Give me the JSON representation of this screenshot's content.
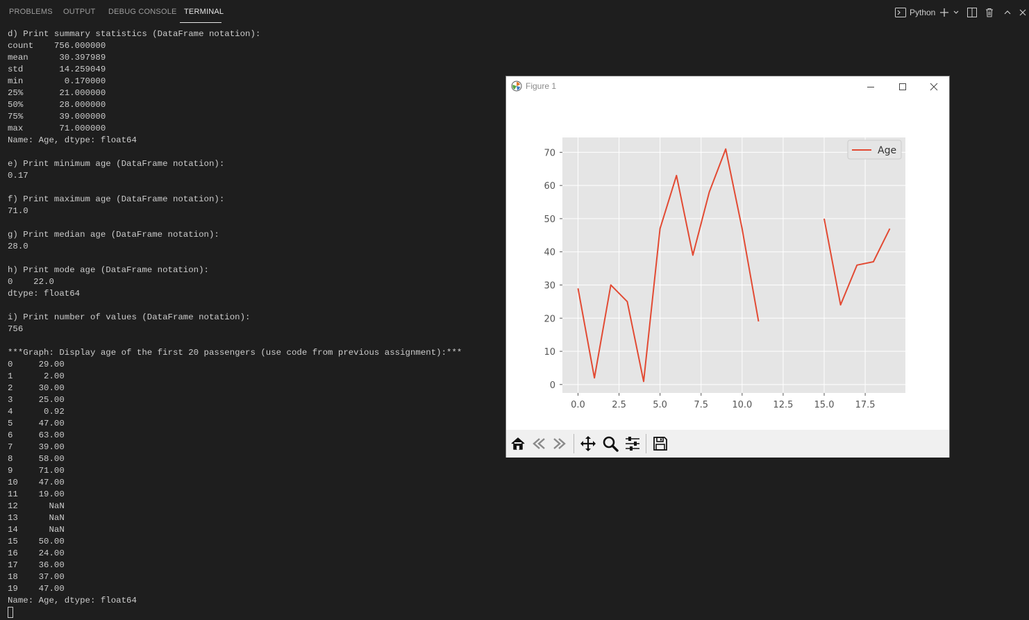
{
  "tabs": [
    {
      "label": "PROBLEMS",
      "active": false
    },
    {
      "label": "OUTPUT",
      "active": false
    },
    {
      "label": "DEBUG CONSOLE",
      "active": false
    },
    {
      "label": "TERMINAL",
      "active": true
    }
  ],
  "terminal_tools": {
    "shell_label": "Python",
    "icons": [
      "terminal-icon",
      "plus-icon",
      "chevron-down-icon",
      "split-icon",
      "trash-icon",
      "chevron-up-icon",
      "close-icon"
    ]
  },
  "terminal": {
    "lines": [
      "d) Print summary statistics (DataFrame notation):",
      "count    756.000000",
      "mean      30.397989",
      "std       14.259049",
      "min        0.170000",
      "25%       21.000000",
      "50%       28.000000",
      "75%       39.000000",
      "max       71.000000",
      "Name: Age, dtype: float64",
      "",
      "e) Print minimum age (DataFrame notation):",
      "0.17",
      "",
      "f) Print maximum age (DataFrame notation):",
      "71.0",
      "",
      "g) Print median age (DataFrame notation):",
      "28.0",
      "",
      "h) Print mode age (DataFrame notation):",
      "0    22.0",
      "dtype: float64",
      "",
      "i) Print number of values (DataFrame notation):",
      "756",
      "",
      "***Graph: Display age of the first 20 passengers (use code from previous assignment):***",
      "0     29.00",
      "1      2.00",
      "2     30.00",
      "3     25.00",
      "4      0.92",
      "5     47.00",
      "6     63.00",
      "7     39.00",
      "8     58.00",
      "9     71.00",
      "10    47.00",
      "11    19.00",
      "12      NaN",
      "13      NaN",
      "14      NaN",
      "15    50.00",
      "16    24.00",
      "17    36.00",
      "18    37.00",
      "19    47.00",
      "Name: Age, dtype: float64"
    ]
  },
  "figure_window": {
    "title": "Figure 1",
    "controls": [
      "minimize-icon",
      "maximize-icon",
      "close-icon"
    ],
    "toolbar_icons": [
      "home-icon",
      "back-icon",
      "forward-icon",
      "pan-icon",
      "zoom-icon",
      "configure-icon",
      "save-icon"
    ]
  },
  "chart_data": {
    "type": "line",
    "title": "",
    "xlabel": "",
    "ylabel": "",
    "x": [
      0,
      1,
      2,
      3,
      4,
      5,
      6,
      7,
      8,
      9,
      10,
      11,
      12,
      13,
      14,
      15,
      16,
      17,
      18,
      19
    ],
    "series": [
      {
        "name": "Age",
        "color": "#e24a33",
        "values": [
          29,
          2,
          30,
          25,
          0.92,
          47,
          63,
          39,
          58,
          71,
          47,
          19,
          null,
          null,
          null,
          50,
          24,
          36,
          37,
          47
        ]
      }
    ],
    "xlim": [
      -0.95,
      19.95
    ],
    "ylim": [
      -2.55,
      74.47
    ],
    "xticks": [
      0,
      2.5,
      5,
      7.5,
      10,
      12.5,
      15,
      17.5
    ],
    "xtick_labels": [
      "0.0",
      "2.5",
      "5.0",
      "7.5",
      "10.0",
      "12.5",
      "15.0",
      "17.5"
    ],
    "yticks": [
      0,
      10,
      20,
      30,
      40,
      50,
      60,
      70
    ],
    "ytick_labels": [
      "0",
      "10",
      "20",
      "30",
      "40",
      "50",
      "60",
      "70"
    ],
    "grid": true,
    "legend": "top-right",
    "style": "ggplot"
  }
}
